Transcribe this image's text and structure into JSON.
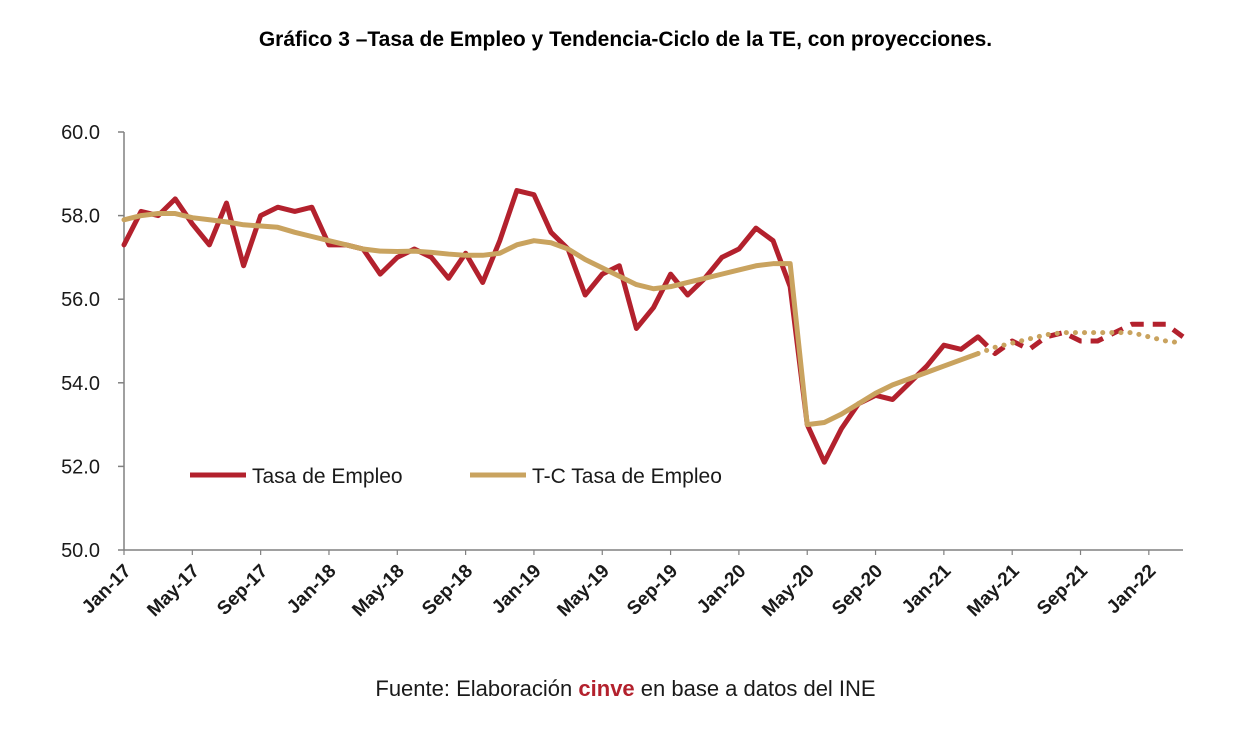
{
  "chart_data": {
    "type": "line",
    "title": "Gráfico 3 –Tasa de Empleo y Tendencia-Ciclo de la TE, con proyecciones.",
    "xlabel": "",
    "ylabel": "",
    "ylim": [
      50,
      60
    ],
    "y_ticks": [
      "50.0",
      "52.0",
      "54.0",
      "56.0",
      "58.0",
      "60.0"
    ],
    "x_tick_labels": [
      "Jan-17",
      "May-17",
      "Sep-17",
      "Jan-18",
      "May-18",
      "Sep-18",
      "Jan-19",
      "May-19",
      "Sep-19",
      "Jan-20",
      "May-20",
      "Sep-20",
      "Jan-21",
      "May-21",
      "Sep-21",
      "Jan-22"
    ],
    "x_start": "Jan-17",
    "x_end": "Jan-22",
    "grid": false,
    "legend_position": "bottom-left inside",
    "series": [
      {
        "name": "Tasa de Empleo",
        "color": "#b3212d",
        "observed_values": [
          57.3,
          58.1,
          58.0,
          58.4,
          57.8,
          57.3,
          58.3,
          56.8,
          58.0,
          58.2,
          58.1,
          58.2,
          57.3,
          57.3,
          57.2,
          56.6,
          57.0,
          57.2,
          57.0,
          56.5,
          57.1,
          56.4,
          57.4,
          58.6,
          58.5,
          57.6,
          57.2,
          56.1,
          56.6,
          56.8,
          55.3,
          55.8,
          56.6,
          56.1,
          56.5,
          57.0,
          57.2,
          57.7,
          57.4,
          56.3,
          53.0,
          52.1,
          52.9,
          53.5,
          53.7,
          53.6,
          54.0,
          54.4,
          54.9,
          54.8,
          55.1
        ],
        "projected_values": [
          55.1,
          54.7,
          55.0,
          54.8,
          55.1,
          55.2,
          55.0,
          55.0,
          55.2,
          55.4,
          55.4,
          55.4,
          55.1
        ],
        "projected_style": "dashed"
      },
      {
        "name": "T-C Tasa de Empleo",
        "color": "#c9a35f",
        "observed_values": [
          57.9,
          58.0,
          58.05,
          58.05,
          57.95,
          57.9,
          57.85,
          57.78,
          57.75,
          57.72,
          57.6,
          57.5,
          57.4,
          57.3,
          57.2,
          57.15,
          57.14,
          57.15,
          57.12,
          57.08,
          57.05,
          57.05,
          57.1,
          57.3,
          57.4,
          57.35,
          57.2,
          56.95,
          56.75,
          56.55,
          56.35,
          56.25,
          56.3,
          56.4,
          56.5,
          56.6,
          56.7,
          56.8,
          56.85,
          56.85,
          53.0,
          53.05,
          53.25,
          53.5,
          53.75,
          53.95,
          54.1,
          54.25,
          54.4,
          54.55,
          54.7
        ],
        "projected_values": [
          54.7,
          54.85,
          54.95,
          55.05,
          55.15,
          55.2,
          55.2,
          55.2,
          55.2,
          55.2,
          55.1,
          55.0,
          54.95
        ],
        "projected_style": "dotted"
      }
    ]
  },
  "source": {
    "prefix": "Fuente: Elaboración ",
    "brand": "cinve",
    "suffix": " en base a datos del INE"
  }
}
